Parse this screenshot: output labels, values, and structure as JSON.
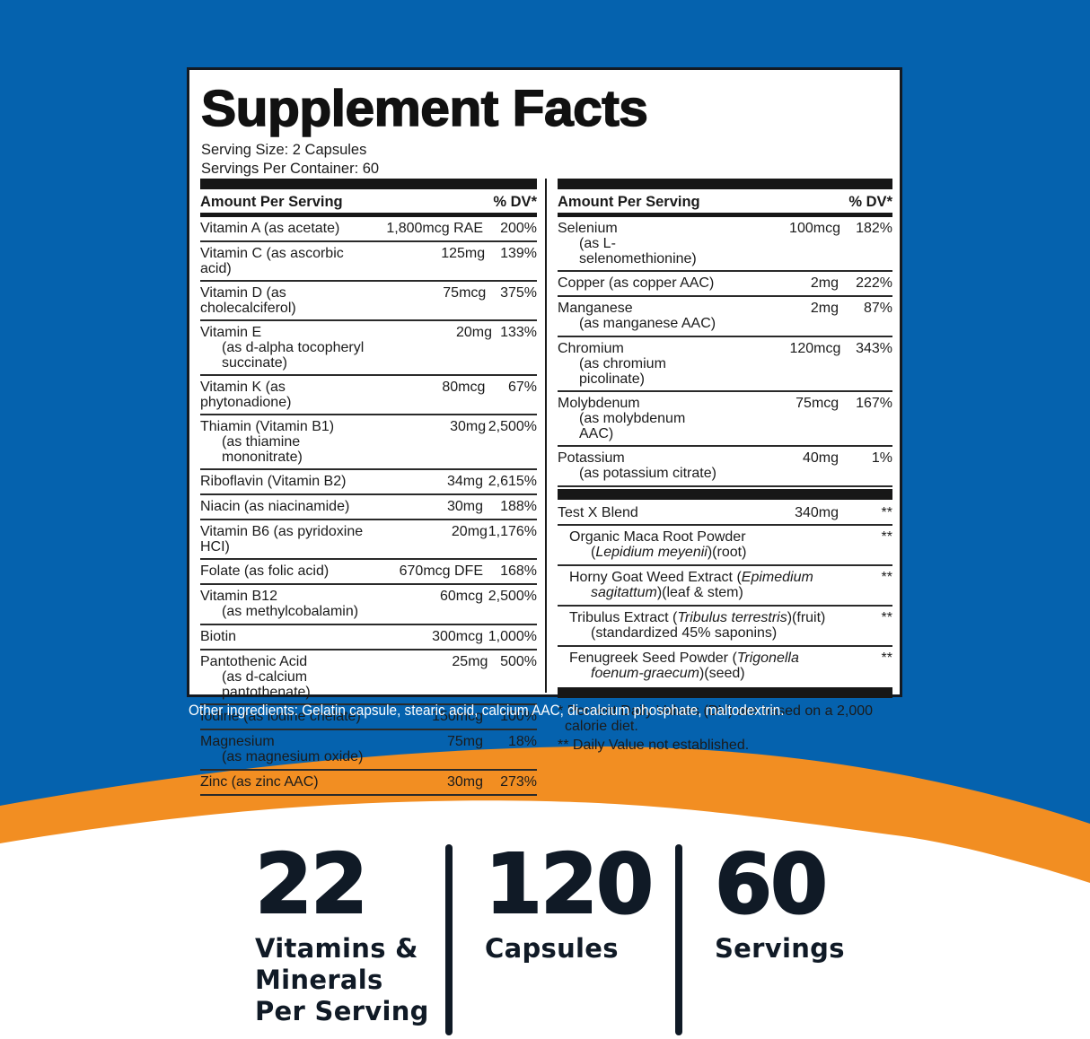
{
  "colors": {
    "background_blue": "#0562ae",
    "wave_orange": "#f28e22",
    "text_dark": "#101a26",
    "panel_border": "#141a22"
  },
  "facts": {
    "title": "Supplement Facts",
    "serving_size": "Serving Size: 2 Capsules",
    "servings_per_container": "Servings Per Container: 60",
    "header_amount": "Amount Per Serving",
    "header_dv": "% DV*",
    "left_rows": [
      {
        "name": "Vitamin A (as acetate)",
        "sub": "",
        "amount": "1,800mcg RAE",
        "dv": "200%"
      },
      {
        "name": "Vitamin C (as ascorbic acid)",
        "sub": "",
        "amount": "125mg",
        "dv": "139%"
      },
      {
        "name": "Vitamin D (as cholecalciferol)",
        "sub": "",
        "amount": "75mcg",
        "dv": "375%"
      },
      {
        "name": "Vitamin E",
        "sub": "(as d-alpha tocopheryl succinate)",
        "amount": "20mg",
        "dv": "133%"
      },
      {
        "name": "Vitamin K (as phytonadione)",
        "sub": "",
        "amount": "80mcg",
        "dv": "67%"
      },
      {
        "name": "Thiamin (Vitamin B1)",
        "sub": "(as thiamine mononitrate)",
        "amount": "30mg",
        "dv": "2,500%"
      },
      {
        "name": "Riboflavin (Vitamin B2)",
        "sub": "",
        "amount": "34mg",
        "dv": "2,615%"
      },
      {
        "name": "Niacin (as niacinamide)",
        "sub": "",
        "amount": "30mg",
        "dv": "188%"
      },
      {
        "name": "Vitamin B6 (as pyridoxine HCI)",
        "sub": "",
        "amount": "20mg",
        "dv": "1,176%"
      },
      {
        "name": "Folate (as folic acid)",
        "sub": "",
        "amount": "670mcg DFE",
        "dv": "168%"
      },
      {
        "name": "Vitamin B12",
        "sub": "(as methylcobalamin)",
        "amount": "60mcg",
        "dv": "2,500%"
      },
      {
        "name": "Biotin",
        "sub": "",
        "amount": "300mcg",
        "dv": "1,000%"
      },
      {
        "name": "Pantothenic Acid",
        "sub": "(as d-calcium pantothenate)",
        "amount": "25mg",
        "dv": "500%"
      },
      {
        "name": "Iodine (as iodine chelate)",
        "sub": "",
        "amount": "150mcg",
        "dv": "100%"
      },
      {
        "name": "Magnesium",
        "sub": "(as magnesium oxide)",
        "amount": "75mg",
        "dv": "18%"
      },
      {
        "name": "Zinc (as zinc AAC)",
        "sub": "",
        "amount": "30mg",
        "dv": "273%"
      }
    ],
    "right_rows": [
      {
        "name": "Selenium",
        "sub": "(as L-selenomethionine)",
        "amount": "100mcg",
        "dv": "182%"
      },
      {
        "name": "Copper (as copper AAC)",
        "sub": "",
        "amount": "2mg",
        "dv": "222%"
      },
      {
        "name": "Manganese",
        "sub": "(as manganese AAC)",
        "amount": "2mg",
        "dv": "87%"
      },
      {
        "name": "Chromium",
        "sub": "(as chromium picolinate)",
        "amount": "120mcg",
        "dv": "343%"
      },
      {
        "name": "Molybdenum",
        "sub": "(as molybdenum AAC)",
        "amount": "75mcg",
        "dv": "167%"
      },
      {
        "name": "Potassium",
        "sub": "(as potassium citrate)",
        "amount": "40mg",
        "dv": "1%"
      }
    ],
    "blend": {
      "name": "Test X Blend",
      "amount": "340mg",
      "dv": "**",
      "items": [
        {
          "line1_pre": "Organic Maca Root Powder",
          "line1_italic": "",
          "line1_post": "",
          "line2_pre": "(",
          "line2_italic": "Lepidium meyenii",
          "line2_post": ")(root)",
          "dv": "**"
        },
        {
          "line1_pre": "Horny Goat Weed Extract (",
          "line1_italic": "Epimedium",
          "line1_post": "",
          "line2_pre": "",
          "line2_italic": "sagitattum",
          "line2_post": ")(leaf & stem)",
          "dv": "**"
        },
        {
          "line1_pre": "Tribulus Extract (",
          "line1_italic": "Tribulus terrestris",
          "line1_post": ")(fruit)",
          "line2_pre": "(standardized 45% saponins)",
          "line2_italic": "",
          "line2_post": "",
          "dv": "**"
        },
        {
          "line1_pre": "Fenugreek Seed Powder (",
          "line1_italic": "Trigonella",
          "line1_post": "",
          "line2_pre": "",
          "line2_italic": "foenum-graecum",
          "line2_post": ")(seed)",
          "dv": "**"
        }
      ]
    },
    "footnote_1": "* Percent Daily Values (DV) are based on a 2,000",
    "footnote_1_cont": "calorie diet.",
    "footnote_2": "** Daily Value not established."
  },
  "other_ingredients": "Other ingredients: Gelatin capsule, stearic acid, calcium AAC, di-calcium phosphate, maltodextrin.",
  "stats": [
    {
      "number": "22",
      "label_lines": [
        "Vitamins &",
        "Minerals",
        "Per Serving"
      ]
    },
    {
      "number": "120",
      "label_lines": [
        "Capsules"
      ]
    },
    {
      "number": "60",
      "label_lines": [
        "Servings"
      ]
    }
  ]
}
